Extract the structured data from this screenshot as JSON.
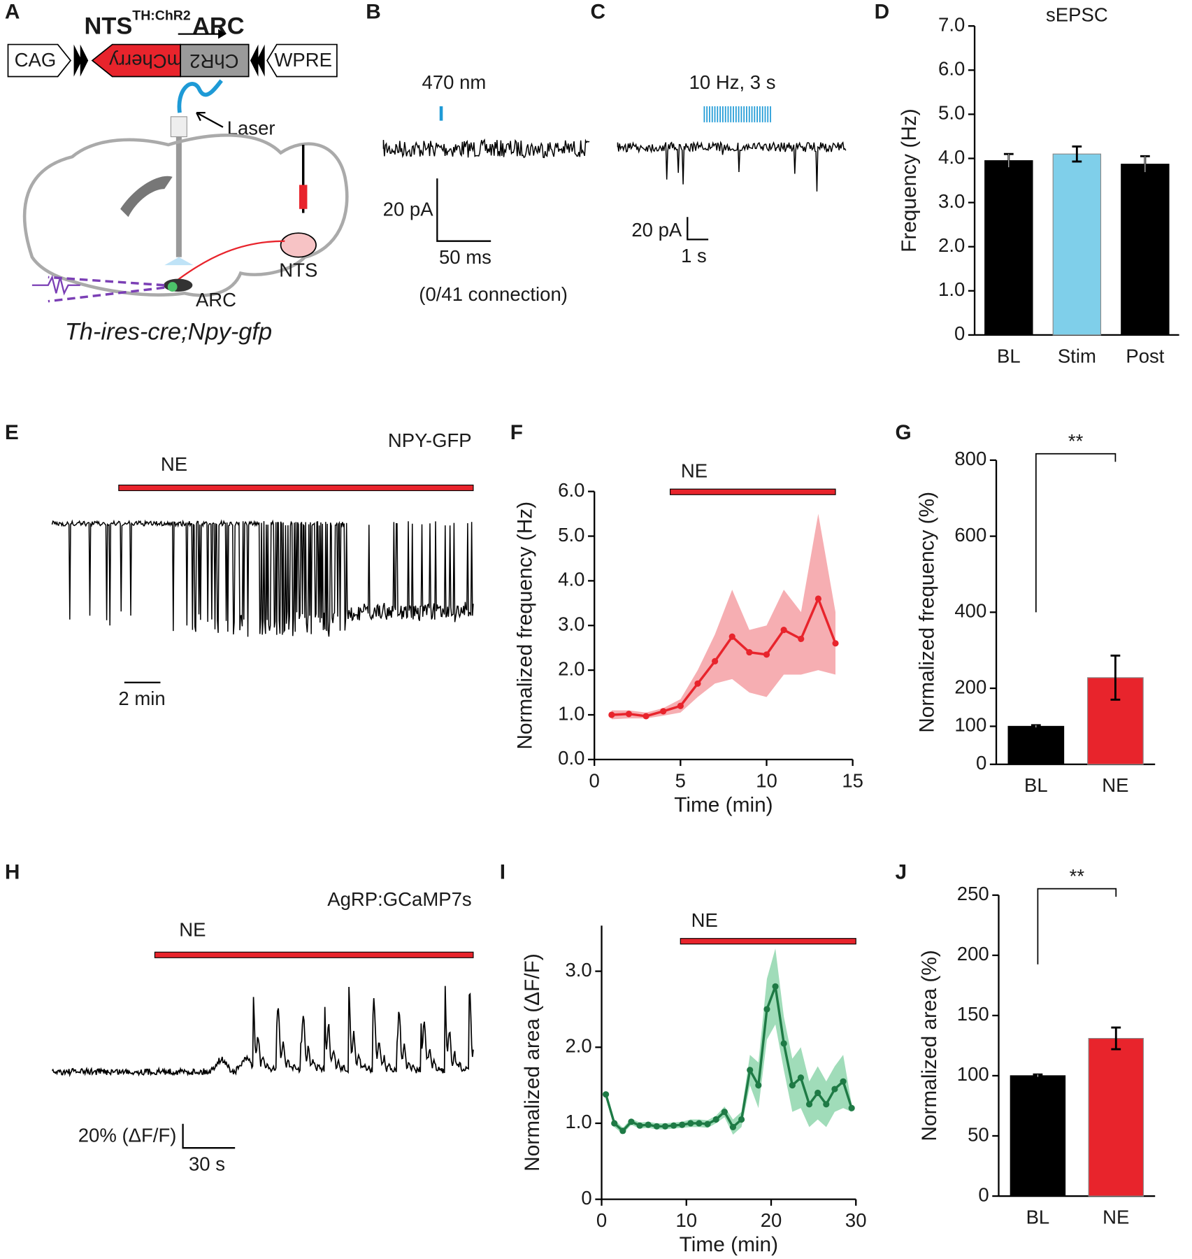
{
  "figure": {
    "A": {
      "letter": "A",
      "name_main": "NTS",
      "name_sup": "TH:ChR2",
      "name_target": "ARC",
      "box_cag": "CAG",
      "box_mcherry": "mCherry",
      "box_chr2": "ChR2",
      "box_wpre": "WPRE",
      "laser": "Laser",
      "nts": "NTS",
      "arc": "ARC",
      "genotype": "Th-ires-cre;Npy-gfp"
    },
    "B": {
      "letter": "B",
      "stim": "470 nm",
      "scale_y": "20 pA",
      "scale_x": "50 ms",
      "note": "(0/41 connection)"
    },
    "C": {
      "letter": "C",
      "stim": "10 Hz, 3 s",
      "scale_y": "20 pA",
      "scale_x": "1 s"
    },
    "E": {
      "letter": "E",
      "cell": "NPY-GFP",
      "drug": "NE",
      "scale_x": "2 min"
    },
    "H": {
      "letter": "H",
      "cell": "AgRP:GCaMP7s",
      "drug": "NE",
      "scale_y": "20% (ΔF/F)",
      "scale_x": "30 s"
    }
  },
  "chart_data": [
    {
      "type": "bar",
      "panel": "D",
      "title": "sEPSC",
      "y_label": "Frequency (Hz)",
      "categories": [
        "BL",
        "Stim",
        "Post"
      ],
      "values": [
        3.95,
        4.1,
        3.87
      ],
      "errors": [
        0.15,
        0.17,
        0.18
      ],
      "colors": [
        "#000000",
        "#7fcfea",
        "#000000"
      ],
      "ylim": [
        0,
        7
      ],
      "yticks": [
        0,
        {
          "value": 1,
          "label": "1.0"
        },
        {
          "value": 2,
          "label": "2.0"
        },
        {
          "value": 3,
          "label": "3.0"
        },
        {
          "value": 4,
          "label": "4.0"
        },
        {
          "value": 5,
          "label": "5.0"
        },
        {
          "value": 6,
          "label": "6.0"
        },
        {
          "value": 7,
          "label": "7.0"
        }
      ]
    },
    {
      "type": "line",
      "panel": "F",
      "x_label": "Time (min)",
      "y_label": "Normalized frequency (Hz)",
      "x": [
        1,
        2,
        3,
        4,
        5,
        6,
        7,
        8,
        9,
        10,
        11,
        12,
        13,
        14
      ],
      "values": [
        1.0,
        1.02,
        0.97,
        1.08,
        1.2,
        1.7,
        2.2,
        2.75,
        2.4,
        2.35,
        2.9,
        2.7,
        3.6,
        2.6
      ],
      "band_lower": [
        0.9,
        0.92,
        0.92,
        0.98,
        1.05,
        1.4,
        1.7,
        1.8,
        1.5,
        1.4,
        1.9,
        1.9,
        2.0,
        1.9
      ],
      "band_upper": [
        1.1,
        1.1,
        1.05,
        1.15,
        1.35,
        2.0,
        2.8,
        3.8,
        2.9,
        3.0,
        3.8,
        3.3,
        5.5,
        3.3
      ],
      "color": "#e8242c",
      "band_color": "#f4a0a4",
      "xlim": [
        0,
        15
      ],
      "xticks": [
        0,
        5,
        10,
        15
      ],
      "ylim": [
        0,
        6
      ],
      "yticks": [
        {
          "value": 0,
          "label": "0.0"
        },
        {
          "value": 1,
          "label": "1.0"
        },
        {
          "value": 2,
          "label": "2.0"
        },
        {
          "value": 3,
          "label": "3.0"
        },
        {
          "value": 4,
          "label": "4.0"
        },
        {
          "value": 5,
          "label": "5.0"
        },
        {
          "value": 6,
          "label": "6.0"
        }
      ],
      "annotation": {
        "text": "NE",
        "x_start": 4.4,
        "x_end": 14,
        "y": 6.0
      }
    },
    {
      "type": "bar",
      "panel": "G",
      "y_label": "Normalized frequency (%)",
      "categories": [
        "BL",
        "NE"
      ],
      "values": [
        100,
        228
      ],
      "errors": [
        3,
        58
      ],
      "colors": [
        "#000000",
        "#e8242c"
      ],
      "ylim": [
        0,
        800
      ],
      "yticks": [
        0,
        100,
        200,
        400,
        600,
        800
      ],
      "significance": "**"
    },
    {
      "type": "line",
      "panel": "I",
      "x_label": "Time (min)",
      "y_label": "Normalized area (ΔF/F)",
      "x": [
        0.5,
        1.5,
        2.5,
        3.5,
        4.5,
        5.5,
        6.5,
        7.5,
        8.5,
        9.5,
        10.5,
        11.5,
        12.5,
        13.5,
        14.5,
        15.5,
        16.5,
        17.5,
        18.5,
        19.5,
        20.5,
        21.5,
        22.5,
        23.5,
        24.5,
        25.5,
        26.5,
        27.5,
        28.5,
        29.5
      ],
      "values": [
        1.38,
        1.0,
        0.9,
        1.02,
        0.97,
        0.98,
        0.96,
        0.96,
        0.97,
        0.98,
        1.0,
        1.0,
        0.99,
        1.05,
        1.15,
        0.95,
        1.05,
        1.7,
        1.5,
        2.5,
        2.8,
        2.05,
        1.5,
        1.6,
        1.25,
        1.4,
        1.25,
        1.45,
        1.55,
        1.2
      ],
      "band_lower": [
        1.33,
        0.95,
        0.86,
        0.98,
        0.93,
        0.94,
        0.92,
        0.92,
        0.93,
        0.94,
        0.95,
        0.95,
        0.94,
        1.0,
        1.08,
        0.85,
        0.95,
        1.5,
        1.2,
        2.1,
        2.3,
        1.7,
        1.15,
        1.2,
        0.95,
        1.05,
        0.95,
        1.15,
        1.2,
        1.15
      ],
      "band_upper": [
        1.43,
        1.05,
        0.94,
        1.06,
        1.01,
        1.02,
        1.0,
        1.0,
        1.01,
        1.02,
        1.05,
        1.05,
        1.04,
        1.1,
        1.22,
        1.05,
        1.15,
        1.9,
        1.8,
        2.9,
        3.3,
        2.4,
        1.85,
        2.0,
        1.55,
        1.75,
        1.55,
        1.75,
        1.9,
        1.25
      ],
      "color": "#1e7a45",
      "band_color": "#8fd6ad",
      "xlim": [
        0,
        30
      ],
      "xticks": [
        0,
        10,
        20,
        30
      ],
      "ylim": [
        0,
        3.6
      ],
      "yticks": [
        0,
        {
          "value": 1,
          "label": "1.0"
        },
        {
          "value": 2,
          "label": "2.0"
        },
        {
          "value": 3,
          "label": "3.0"
        }
      ],
      "annotation": {
        "text": "NE",
        "x_start": 9.3,
        "x_end": 30,
        "y": 3.4
      }
    },
    {
      "type": "bar",
      "panel": "J",
      "y_label": "Normalized area (%)",
      "categories": [
        "BL",
        "NE"
      ],
      "values": [
        100,
        131
      ],
      "errors": [
        1,
        9
      ],
      "colors": [
        "#000000",
        "#e8242c"
      ],
      "ylim": [
        0,
        250
      ],
      "yticks": [
        0,
        50,
        100,
        150,
        200,
        250
      ],
      "significance": "**"
    }
  ]
}
